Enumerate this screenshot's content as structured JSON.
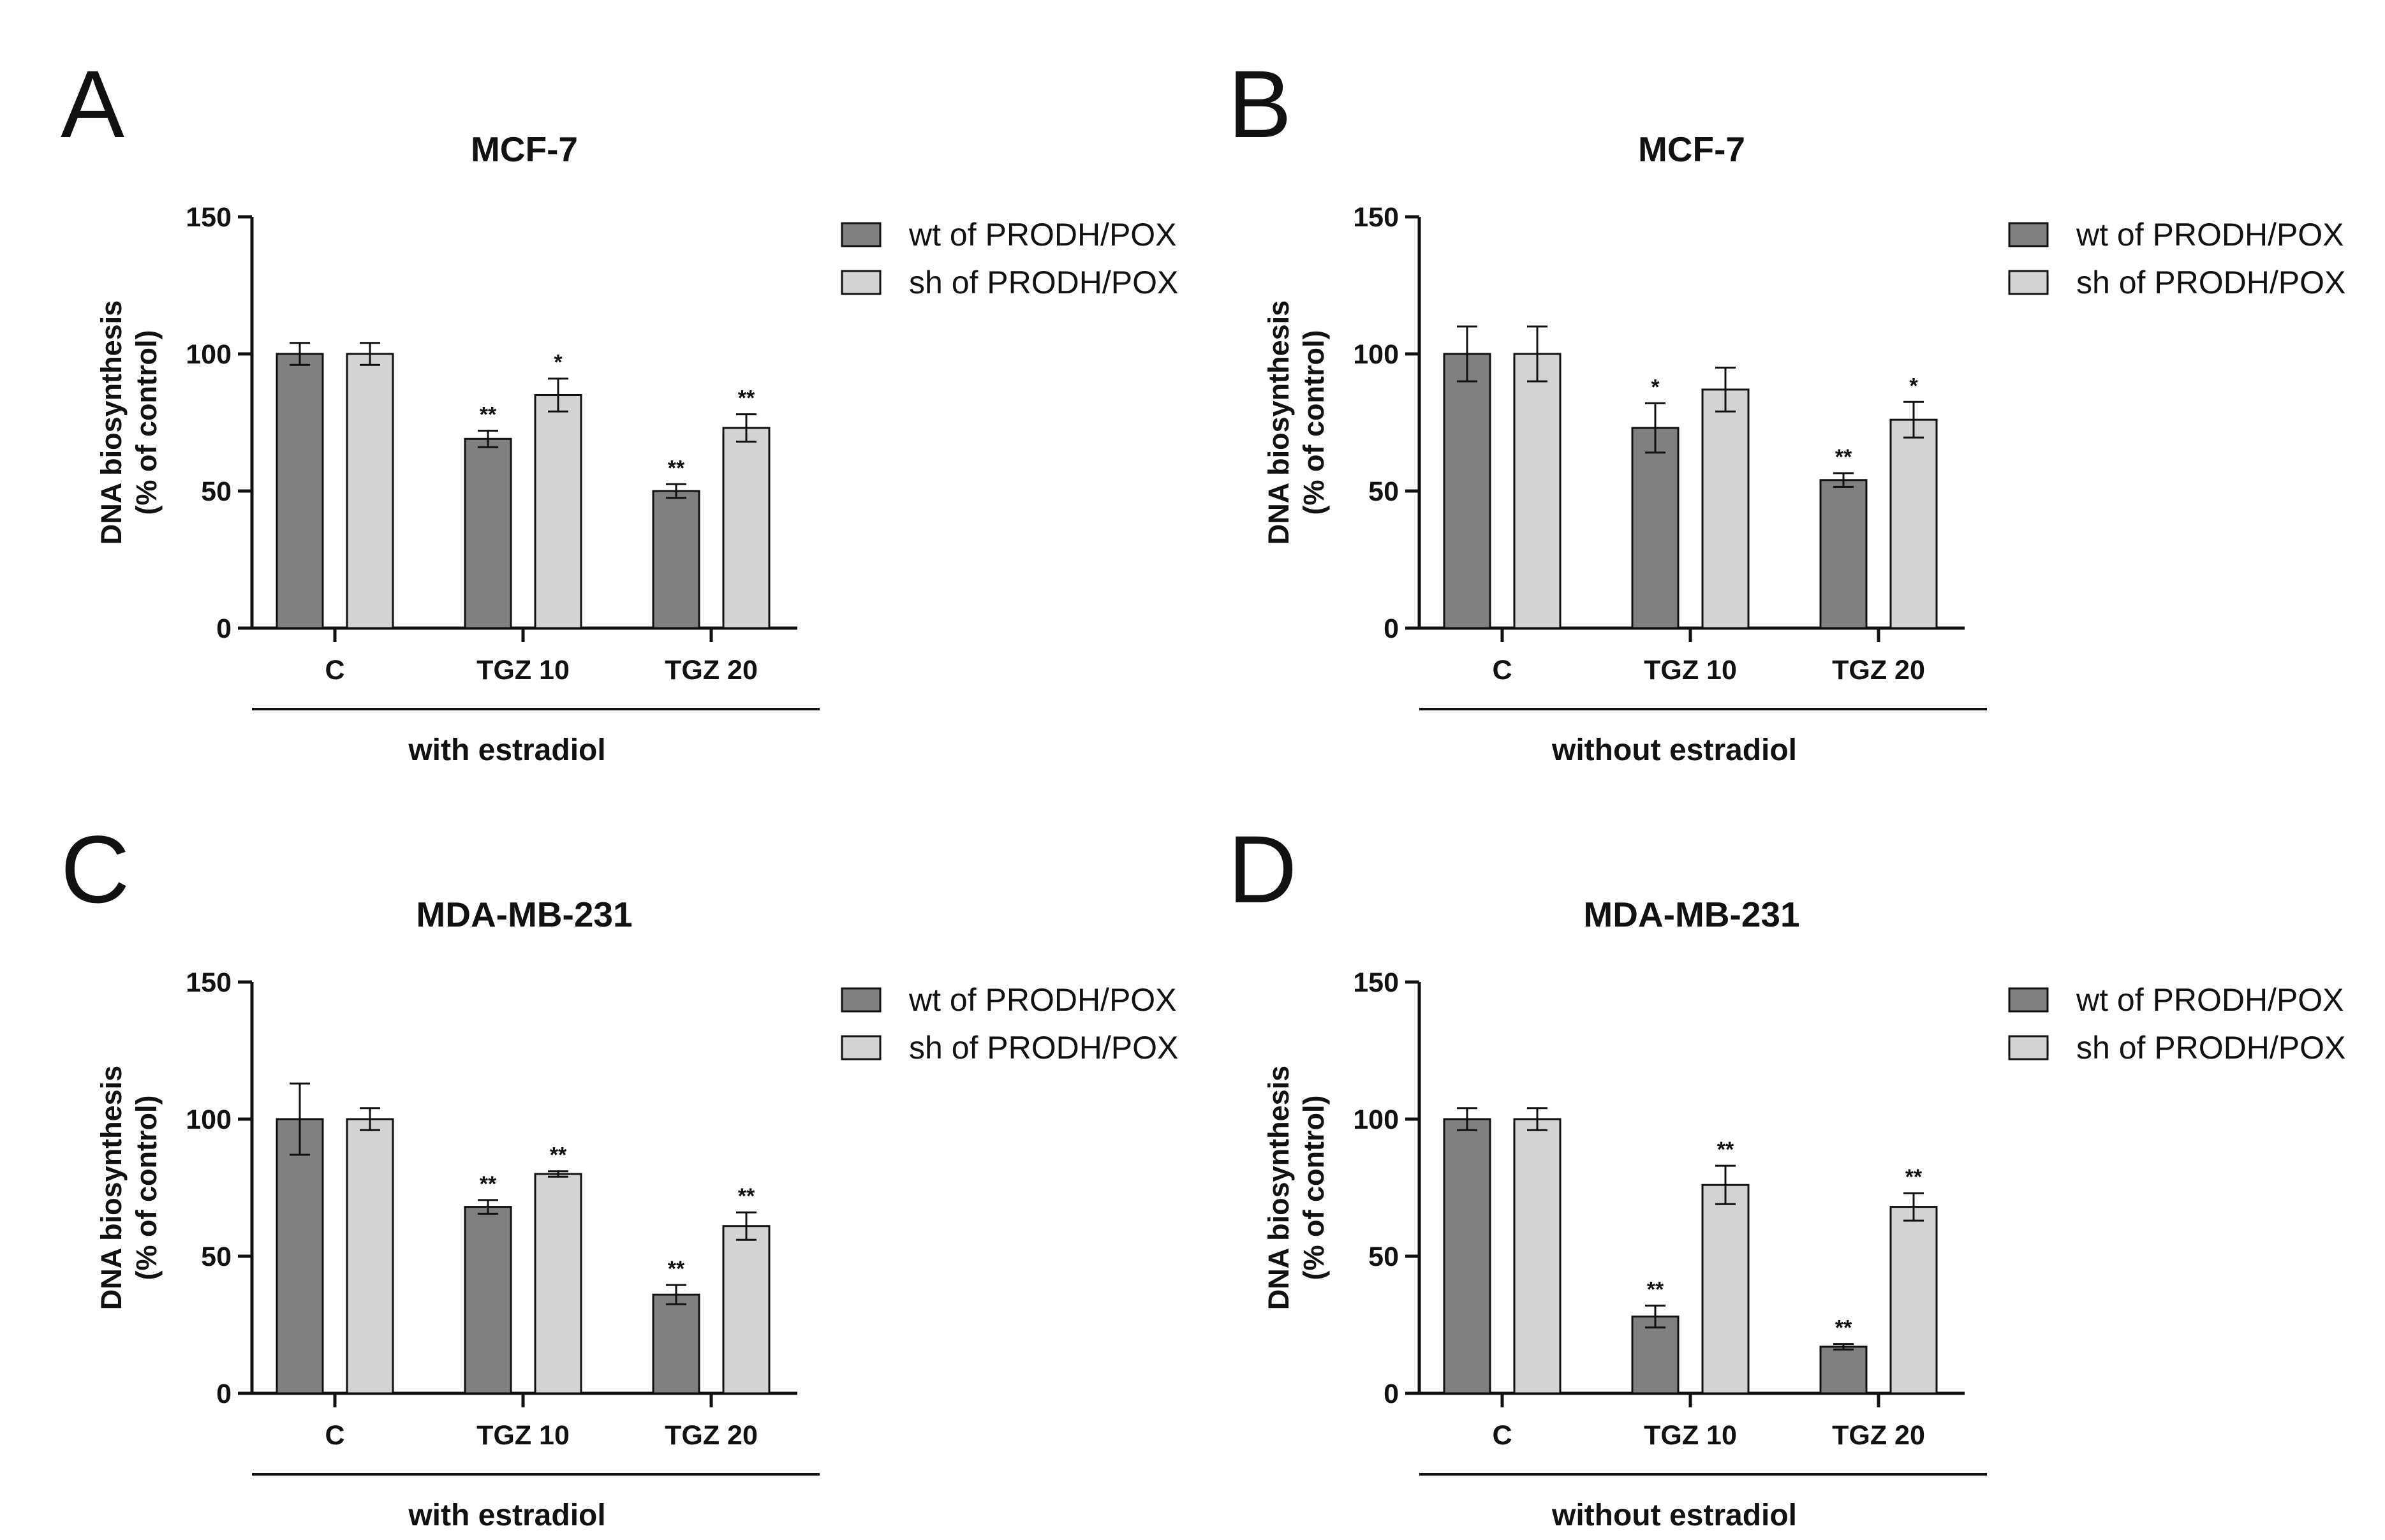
{
  "chart_data": [
    {
      "panel_letter": "A",
      "type": "bar",
      "title": "MCF-7",
      "ylabel_line1": "DNA biosynthesis",
      "ylabel_line2": "(% of control)",
      "xlabel": "with estradiol",
      "ylim": [
        0,
        150
      ],
      "yticks": [
        "0",
        "50",
        "100",
        "150"
      ],
      "categories": [
        "C",
        "TGZ 10",
        "TGZ 20"
      ],
      "series": [
        {
          "name": "wt of PRODH/POX",
          "color": "#808080",
          "values": [
            100,
            69,
            50
          ],
          "errors": [
            4,
            3,
            2.5
          ],
          "sig": [
            "",
            "**",
            "**"
          ]
        },
        {
          "name": "sh of PRODH/POX",
          "color": "#d3d3d3",
          "values": [
            100,
            85,
            73
          ],
          "errors": [
            4,
            6,
            5
          ],
          "sig": [
            "",
            "*",
            "**"
          ]
        }
      ]
    },
    {
      "panel_letter": "B",
      "type": "bar",
      "title": "MCF-7",
      "ylabel_line1": "DNA biosynthesis",
      "ylabel_line2": "(% of control)",
      "xlabel": "without estradiol",
      "ylim": [
        0,
        150
      ],
      "yticks": [
        "0",
        "50",
        "100",
        "150"
      ],
      "categories": [
        "C",
        "TGZ 10",
        "TGZ 20"
      ],
      "series": [
        {
          "name": "wt of PRODH/POX",
          "color": "#808080",
          "values": [
            100,
            73,
            54
          ],
          "errors": [
            10,
            9,
            2.5
          ],
          "sig": [
            "",
            "*",
            "**"
          ]
        },
        {
          "name": "sh of PRODH/POX",
          "color": "#d3d3d3",
          "values": [
            100,
            87,
            76
          ],
          "errors": [
            10,
            8,
            6.5
          ],
          "sig": [
            "",
            "",
            "*"
          ]
        }
      ]
    },
    {
      "panel_letter": "C",
      "type": "bar",
      "title": "MDA-MB-231",
      "ylabel_line1": "DNA biosynthesis",
      "ylabel_line2": "(% of control)",
      "xlabel": "with estradiol",
      "ylim": [
        0,
        150
      ],
      "yticks": [
        "0",
        "50",
        "100",
        "150"
      ],
      "categories": [
        "C",
        "TGZ 10",
        "TGZ 20"
      ],
      "series": [
        {
          "name": "wt of PRODH/POX",
          "color": "#808080",
          "values": [
            100,
            68,
            36
          ],
          "errors": [
            13,
            2.5,
            3.5
          ],
          "sig": [
            "",
            "**",
            "**"
          ]
        },
        {
          "name": "sh of PRODH/POX",
          "color": "#d3d3d3",
          "values": [
            100,
            80,
            61
          ],
          "errors": [
            4,
            1,
            5
          ],
          "sig": [
            "",
            "**",
            "**"
          ]
        }
      ]
    },
    {
      "panel_letter": "D",
      "type": "bar",
      "title": "MDA-MB-231",
      "ylabel_line1": "DNA biosynthesis",
      "ylabel_line2": "(% of control)",
      "xlabel": "without estradiol",
      "ylim": [
        0,
        150
      ],
      "yticks": [
        "0",
        "50",
        "100",
        "150"
      ],
      "categories": [
        "C",
        "TGZ 10",
        "TGZ 20"
      ],
      "series": [
        {
          "name": "wt of PRODH/POX",
          "color": "#808080",
          "values": [
            100,
            28,
            17
          ],
          "errors": [
            4,
            4,
            1
          ],
          "sig": [
            "",
            "**",
            "**"
          ]
        },
        {
          "name": "sh of PRODH/POX",
          "color": "#d3d3d3",
          "values": [
            100,
            76,
            68
          ],
          "errors": [
            4,
            7,
            5
          ],
          "sig": [
            "",
            "**",
            "**"
          ]
        }
      ]
    }
  ]
}
